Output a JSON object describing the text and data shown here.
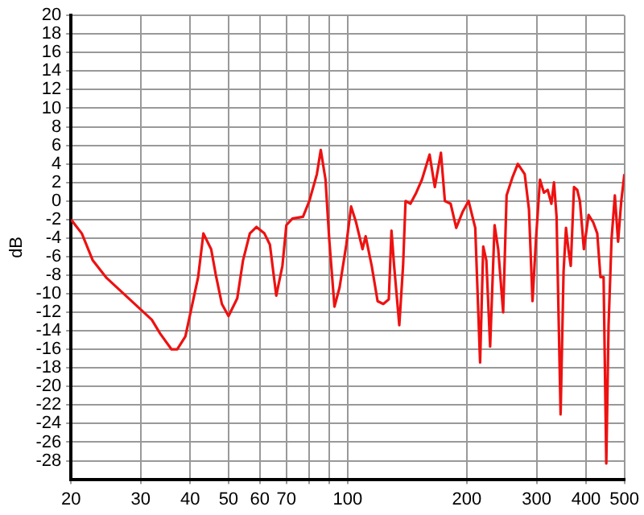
{
  "chart_data": {
    "type": "line",
    "ylabel": "dB",
    "log": "x",
    "grid": true,
    "legend": false,
    "marker": "none",
    "xlim": [
      20,
      500
    ],
    "xticks": [
      20,
      30,
      40,
      50,
      60,
      70,
      {
        "value": 80,
        "label": null
      },
      {
        "value": 90,
        "label": null
      },
      100,
      200,
      300,
      400,
      500
    ],
    "ylim": [
      -30,
      20
    ],
    "yticks": [
      -28,
      -26,
      -24,
      -22,
      -20,
      -18,
      -16,
      -14,
      -12,
      -10,
      -8,
      -6,
      -4,
      -2,
      0,
      2,
      4,
      6,
      8,
      10,
      12,
      14,
      16,
      18,
      20
    ],
    "series": [
      {
        "color": "#ee1111",
        "x": [
          20,
          21.3,
          22.7,
          24.6,
          30,
          32,
          33.6,
          35.9,
          37.1,
          38.9,
          40,
          41.9,
          43.2,
          45.2,
          46.4,
          48.1,
          50,
          52.6,
          54.4,
          56.6,
          58.8,
          61.6,
          63.6,
          66,
          68.4,
          70,
          72.5,
          77.1,
          80,
          83.6,
          85.5,
          87.9,
          89.8,
          92.6,
          95.4,
          99.2,
          102,
          105,
          109,
          111,
          115,
          119,
          123,
          127,
          129,
          131,
          135,
          138,
          140,
          144,
          149,
          154,
          161,
          166,
          172,
          176,
          182,
          188,
          195,
          202,
          210,
          216,
          220,
          224,
          229,
          235,
          240,
          247,
          252,
          261,
          269,
          280,
          287,
          293,
          299,
          306,
          313,
          320,
          327,
          332,
          337,
          345,
          351,
          356,
          361,
          366,
          373,
          380,
          386,
          395,
          406,
          417,
          427,
          435,
          443,
          450,
          456,
          464,
          473,
          482,
          491,
          500
        ],
        "values": [
          -2,
          -3.5,
          -6.4,
          -8.3,
          -11.7,
          -12.8,
          -14.3,
          -16,
          -16,
          -14.6,
          -12.2,
          -8.2,
          -3.5,
          -5.2,
          -7.9,
          -11.1,
          -12.4,
          -10.5,
          -6.4,
          -3.5,
          -2.8,
          -3.5,
          -4.7,
          -10.2,
          -7,
          -2.6,
          -1.9,
          -1.7,
          0,
          2.9,
          5.5,
          2.3,
          -4.1,
          -11.4,
          -9.3,
          -4.7,
          -0.6,
          -2.3,
          -5.2,
          -3.8,
          -7,
          -10.8,
          -11.1,
          -10.6,
          -3.2,
          -7,
          -13.4,
          -7,
          0,
          -0.3,
          0.9,
          2.3,
          5,
          1.5,
          5.2,
          0,
          -0.3,
          -2.9,
          -1.2,
          0,
          -2.9,
          -17.4,
          -4.9,
          -6.4,
          -15.7,
          -2.6,
          -5.2,
          -12,
          0.6,
          2.6,
          4,
          2.9,
          -0.9,
          -10.8,
          -4.1,
          2.3,
          0.9,
          1.2,
          -0.3,
          2,
          -1.7,
          -23,
          -7.6,
          -2.9,
          -5.2,
          -7,
          1.5,
          1.2,
          0,
          -5.2,
          -1.5,
          -2.3,
          -3.5,
          -8.2,
          -8.2,
          -28.3,
          -13.4,
          -4.1,
          0.6,
          -4.4,
          0,
          2.9
        ]
      }
    ]
  }
}
